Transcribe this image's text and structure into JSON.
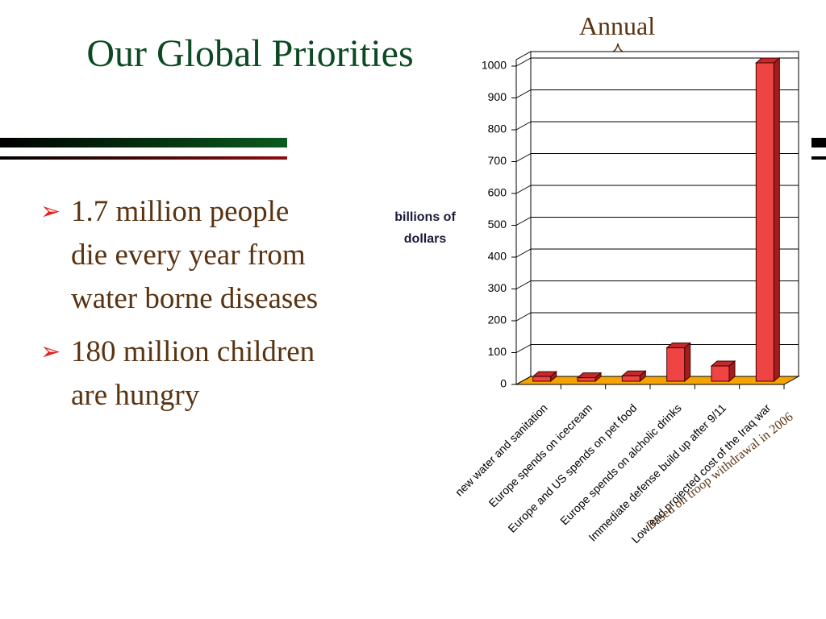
{
  "title": "Our Global Priorities",
  "bullets": [
    "1.7 million people die every year from water borne diseases",
    "180 million children are hungry"
  ],
  "chart_data": {
    "type": "bar",
    "y_label": "billions of dollars",
    "categories": [
      "new water and sanitation",
      "Europe spends on icecream",
      "Europe and US spends on pet food",
      "Europe spends on alcholic drinks",
      "Immediate defense build up after 9/11",
      "Low end projected cost of the Iraq war"
    ],
    "values": [
      15,
      11,
      17,
      105,
      48,
      1000
    ],
    "color": "#ee4444",
    "ylim": [
      0,
      1000
    ],
    "yticks": [
      0,
      100,
      200,
      300,
      400,
      500,
      600,
      700,
      800,
      900,
      1000
    ],
    "grid": true,
    "annotations": [
      "Annual",
      "Based on troop withdrawal in 2006"
    ]
  }
}
